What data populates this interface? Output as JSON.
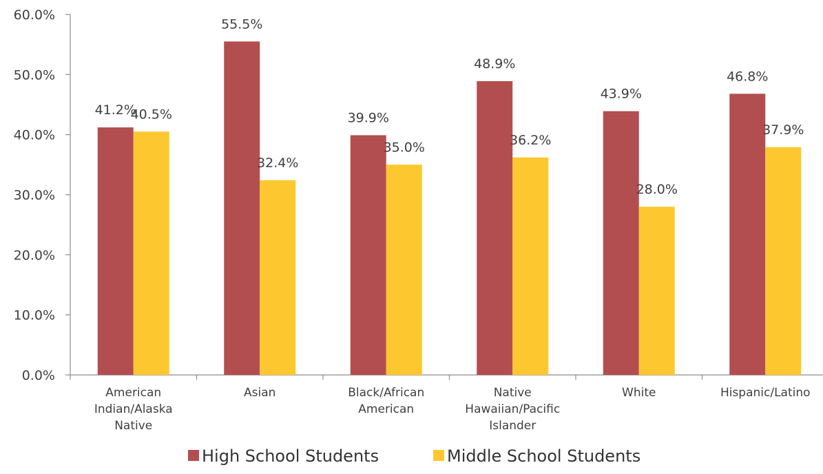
{
  "chart_data": {
    "type": "bar",
    "title": "",
    "xlabel": "",
    "ylabel": "",
    "categories": [
      [
        "American",
        "Indian/Alaska",
        "Native"
      ],
      [
        "Asian"
      ],
      [
        "Black/African",
        "American"
      ],
      [
        "Native",
        "Hawaiian/Pacific",
        "Islander"
      ],
      [
        "White"
      ],
      [
        "Hispanic/Latino"
      ]
    ],
    "series": [
      {
        "name": "High School Students",
        "color": "#b34e50",
        "values": [
          41.2,
          55.5,
          39.9,
          48.9,
          43.9,
          46.8
        ],
        "labels": [
          "41.2%",
          "55.5%",
          "39.9%",
          "48.9%",
          "43.9%",
          "46.8%"
        ]
      },
      {
        "name": "Middle School Students",
        "color": "#fdc82f",
        "values": [
          40.5,
          32.4,
          35.0,
          36.2,
          28.0,
          37.9
        ],
        "labels": [
          "40.5%",
          "32.4%",
          "35.0%",
          "36.2%",
          "28.0%",
          "37.9%"
        ]
      }
    ],
    "ylim": [
      0,
      60
    ],
    "yticks": [
      {
        "value": 0,
        "label": "0.0%"
      },
      {
        "value": 10,
        "label": "10.0%"
      },
      {
        "value": 20,
        "label": "20.0%"
      },
      {
        "value": 30,
        "label": "30.0%"
      },
      {
        "value": 40,
        "label": "40.0%"
      },
      {
        "value": 50,
        "label": "50.0%"
      },
      {
        "value": 60,
        "label": "60.0%"
      }
    ],
    "grid": false,
    "legend_position": "bottom"
  }
}
